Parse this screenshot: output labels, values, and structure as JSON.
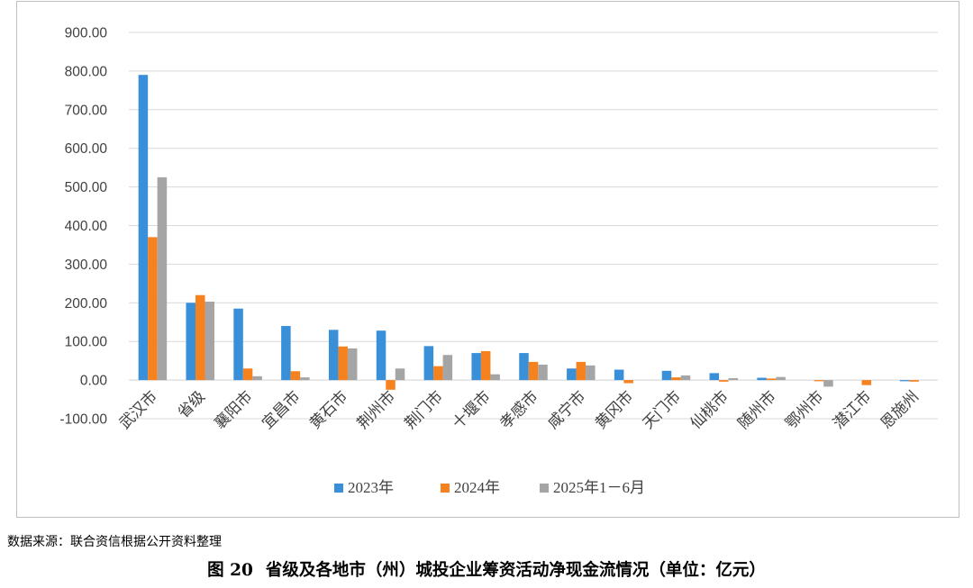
{
  "chart_data": {
    "type": "bar",
    "categories": [
      "武汉市",
      "省级",
      "襄阳市",
      "宜昌市",
      "黄石市",
      "荆州市",
      "荆门市",
      "十堰市",
      "孝感市",
      "咸宁市",
      "黄冈市",
      "天门市",
      "仙桃市",
      "随州市",
      "鄂州市",
      "潜江市",
      "恩施州"
    ],
    "series": [
      {
        "name": "2023年",
        "color": "#3a8fd9",
        "values": [
          790,
          200,
          185,
          140,
          130,
          128,
          88,
          70,
          70,
          30,
          27,
          24,
          18,
          6,
          0,
          0,
          -3
        ]
      },
      {
        "name": "2024年",
        "color": "#f5821f",
        "values": [
          370,
          220,
          30,
          23,
          87,
          -25,
          36,
          75,
          47,
          47,
          -8,
          7,
          -4,
          4,
          -3,
          -13,
          -4
        ]
      },
      {
        "name": "2025年1－6月",
        "color": "#a5a5a5",
        "values": [
          525,
          203,
          10,
          7,
          82,
          30,
          65,
          15,
          40,
          38,
          0,
          12,
          5,
          8,
          -17,
          0,
          0
        ]
      }
    ],
    "ylim": [
      -100,
      900
    ],
    "yticks": [
      "900.00",
      "800.00",
      "700.00",
      "600.00",
      "500.00",
      "400.00",
      "300.00",
      "200.00",
      "100.00",
      "0.00",
      "-100.00"
    ],
    "grid": true,
    "legend_position": "bottom"
  },
  "source_note": "数据来源：联合资信根据公开资料整理",
  "caption": {
    "number": "图 20",
    "text": "省级及各地市（州）城投企业筹资活动净现金流情况（单位：亿元）"
  }
}
